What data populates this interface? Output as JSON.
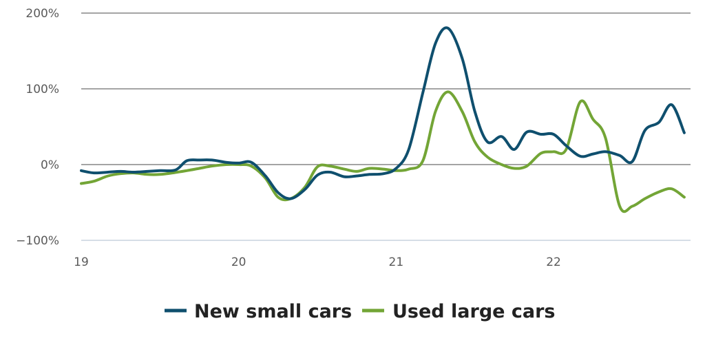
{
  "chart_data": {
    "type": "line",
    "title": "",
    "xlabel": "",
    "ylabel": "",
    "xlim": [
      19,
      22.87
    ],
    "ylim": [
      -100,
      200
    ],
    "x_ticks": [
      {
        "value": 19,
        "label": "19"
      },
      {
        "value": 20,
        "label": "20"
      },
      {
        "value": 21,
        "label": "21"
      },
      {
        "value": 22,
        "label": "22"
      }
    ],
    "y_ticks": [
      {
        "value": 200,
        "label": "200%"
      },
      {
        "value": 100,
        "label": "100%"
      },
      {
        "value": 0,
        "label": "0%"
      },
      {
        "value": -100,
        "label": "−100%"
      }
    ],
    "grid": "horizontal",
    "legend_position": "bottom-center",
    "series": [
      {
        "name": "New small cars",
        "color": "#0f4f6e",
        "points": [
          [
            19.0,
            -8
          ],
          [
            19.08,
            -11
          ],
          [
            19.17,
            -10
          ],
          [
            19.25,
            -9
          ],
          [
            19.33,
            -10
          ],
          [
            19.42,
            -9
          ],
          [
            19.5,
            -8
          ],
          [
            19.6,
            -7
          ],
          [
            19.67,
            5
          ],
          [
            19.75,
            6
          ],
          [
            19.83,
            6
          ],
          [
            19.92,
            3
          ],
          [
            20.0,
            2
          ],
          [
            20.08,
            3
          ],
          [
            20.17,
            -15
          ],
          [
            20.25,
            -37
          ],
          [
            20.33,
            -45
          ],
          [
            20.42,
            -33
          ],
          [
            20.5,
            -14
          ],
          [
            20.58,
            -10
          ],
          [
            20.67,
            -16
          ],
          [
            20.75,
            -15
          ],
          [
            20.83,
            -13
          ],
          [
            20.92,
            -12
          ],
          [
            21.0,
            -5
          ],
          [
            21.08,
            20
          ],
          [
            21.17,
            95
          ],
          [
            21.25,
            160
          ],
          [
            21.33,
            180
          ],
          [
            21.42,
            140
          ],
          [
            21.5,
            70
          ],
          [
            21.58,
            30
          ],
          [
            21.67,
            37
          ],
          [
            21.75,
            20
          ],
          [
            21.83,
            43
          ],
          [
            21.92,
            40
          ],
          [
            22.0,
            40
          ],
          [
            22.08,
            25
          ],
          [
            22.17,
            11
          ],
          [
            22.25,
            14
          ],
          [
            22.33,
            17
          ],
          [
            22.42,
            12
          ],
          [
            22.5,
            4
          ],
          [
            22.58,
            45
          ],
          [
            22.67,
            56
          ],
          [
            22.75,
            79
          ],
          [
            22.83,
            42
          ]
        ]
      },
      {
        "name": "Used large cars",
        "color": "#73a536",
        "points": [
          [
            19.0,
            -25
          ],
          [
            19.08,
            -22
          ],
          [
            19.17,
            -15
          ],
          [
            19.25,
            -12
          ],
          [
            19.33,
            -11
          ],
          [
            19.42,
            -13
          ],
          [
            19.5,
            -13
          ],
          [
            19.58,
            -11
          ],
          [
            19.67,
            -8
          ],
          [
            19.75,
            -5
          ],
          [
            19.83,
            -2
          ],
          [
            19.92,
            0
          ],
          [
            20.0,
            0
          ],
          [
            20.08,
            -2
          ],
          [
            20.17,
            -18
          ],
          [
            20.25,
            -43
          ],
          [
            20.33,
            -45
          ],
          [
            20.42,
            -30
          ],
          [
            20.5,
            -3
          ],
          [
            20.58,
            -2
          ],
          [
            20.67,
            -6
          ],
          [
            20.75,
            -9
          ],
          [
            20.83,
            -5
          ],
          [
            20.92,
            -6
          ],
          [
            21.0,
            -8
          ],
          [
            21.08,
            -6
          ],
          [
            21.17,
            5
          ],
          [
            21.25,
            70
          ],
          [
            21.33,
            96
          ],
          [
            21.42,
            70
          ],
          [
            21.5,
            30
          ],
          [
            21.58,
            10
          ],
          [
            21.67,
            0
          ],
          [
            21.75,
            -5
          ],
          [
            21.83,
            -2
          ],
          [
            21.92,
            15
          ],
          [
            22.0,
            17
          ],
          [
            22.08,
            20
          ],
          [
            22.17,
            83
          ],
          [
            22.25,
            60
          ],
          [
            22.33,
            35
          ],
          [
            22.42,
            -55
          ],
          [
            22.5,
            -55
          ],
          [
            22.58,
            -45
          ],
          [
            22.67,
            -36
          ],
          [
            22.75,
            -32
          ],
          [
            22.83,
            -43
          ]
        ]
      }
    ]
  }
}
